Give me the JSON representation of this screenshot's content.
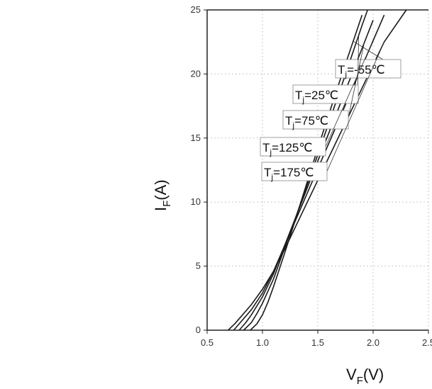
{
  "chart_data": {
    "type": "line",
    "xlabel": "V",
    "xlabel_sub": "F",
    "xlabel_unit": "(V)",
    "ylabel": "I",
    "ylabel_sub": "F",
    "ylabel_unit": "(A)",
    "xlim": [
      0.5,
      2.5
    ],
    "ylim": [
      0,
      25
    ],
    "x_ticks": [
      {
        "value": 0.5,
        "label": "0.5"
      },
      {
        "value": 1.0,
        "label": "1.0"
      },
      {
        "value": 1.5,
        "label": "1.5"
      },
      {
        "value": 2.0,
        "label": "2.0"
      },
      {
        "value": 2.5,
        "label": "2.5"
      }
    ],
    "y_ticks": [
      {
        "value": 0,
        "label": "0"
      },
      {
        "value": 5,
        "label": "5"
      },
      {
        "value": 10,
        "label": "10"
      },
      {
        "value": 15,
        "label": "15"
      },
      {
        "value": 20,
        "label": "20"
      },
      {
        "value": 25,
        "label": "25"
      }
    ],
    "grid": true,
    "series": [
      {
        "name_prefix": "T",
        "name_sub": "j",
        "name_value": "=-55℃",
        "points": [
          [
            0.89,
            0
          ],
          [
            0.95,
            0.5
          ],
          [
            1.0,
            1.2
          ],
          [
            1.05,
            2.2
          ],
          [
            1.1,
            3.4
          ],
          [
            1.2,
            6.0
          ],
          [
            1.3,
            8.7
          ],
          [
            1.5,
            14.2
          ],
          [
            1.7,
            19.5
          ],
          [
            1.9,
            24.6
          ]
        ]
      },
      {
        "name_prefix": "T",
        "name_sub": "j",
        "name_value": "=25℃",
        "points": [
          [
            0.83,
            0
          ],
          [
            0.9,
            0.6
          ],
          [
            0.95,
            1.3
          ],
          [
            1.0,
            2.1
          ],
          [
            1.1,
            4.0
          ],
          [
            1.2,
            6.4
          ],
          [
            1.3,
            8.8
          ],
          [
            1.5,
            13.7
          ],
          [
            1.7,
            18.7
          ],
          [
            1.9,
            23.8
          ],
          [
            1.95,
            25
          ]
        ]
      },
      {
        "name_prefix": "T",
        "name_sub": "j",
        "name_value": "=75℃",
        "points": [
          [
            0.79,
            0
          ],
          [
            0.85,
            0.6
          ],
          [
            0.9,
            1.2
          ],
          [
            1.0,
            2.6
          ],
          [
            1.1,
            4.4
          ],
          [
            1.2,
            6.6
          ],
          [
            1.3,
            8.8
          ],
          [
            1.5,
            13.2
          ],
          [
            1.7,
            17.6
          ],
          [
            1.9,
            22.0
          ],
          [
            2.0,
            24.2
          ]
        ]
      },
      {
        "name_prefix": "T",
        "name_sub": "j",
        "name_value": "=125℃",
        "points": [
          [
            0.74,
            0
          ],
          [
            0.8,
            0.6
          ],
          [
            0.9,
            1.6
          ],
          [
            1.0,
            2.9
          ],
          [
            1.1,
            4.6
          ],
          [
            1.2,
            6.6
          ],
          [
            1.3,
            8.6
          ],
          [
            1.5,
            12.6
          ],
          [
            1.7,
            16.6
          ],
          [
            1.9,
            20.6
          ],
          [
            2.1,
            24.6
          ]
        ]
      },
      {
        "name_prefix": "T",
        "name_sub": "j",
        "name_value": "=175℃",
        "points": [
          [
            0.69,
            0
          ],
          [
            0.75,
            0.5
          ],
          [
            0.8,
            1.0
          ],
          [
            0.9,
            2.0
          ],
          [
            1.0,
            3.2
          ],
          [
            1.1,
            4.6
          ],
          [
            1.2,
            6.3
          ],
          [
            1.3,
            8.1
          ],
          [
            1.5,
            11.7
          ],
          [
            1.7,
            15.3
          ],
          [
            1.9,
            18.9
          ],
          [
            2.1,
            22.5
          ],
          [
            2.3,
            25
          ]
        ]
      }
    ]
  }
}
